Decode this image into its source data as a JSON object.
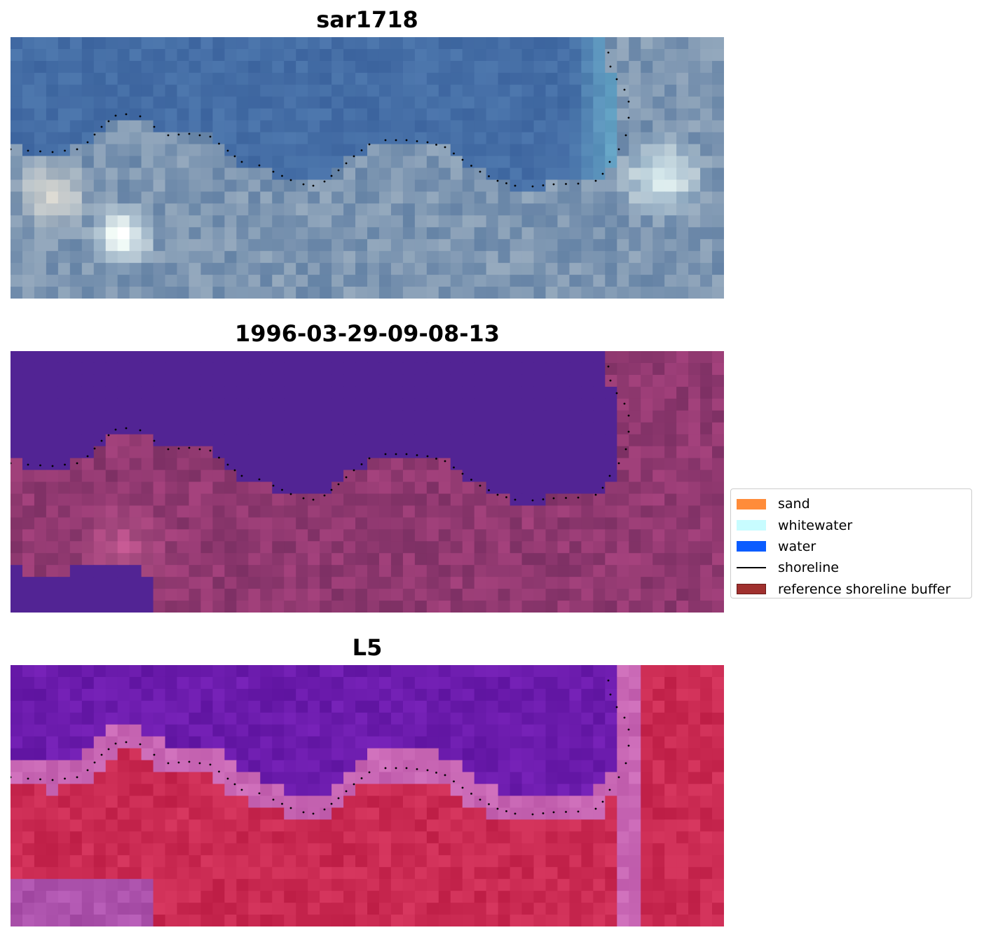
{
  "panels": [
    {
      "title": "sar1718",
      "kind": "rgb"
    },
    {
      "title": "1996-03-29-09-08-13",
      "kind": "classified"
    },
    {
      "title": "L5",
      "kind": "index"
    }
  ],
  "legend": {
    "items": [
      {
        "label": "sand",
        "color": "#ff8c3a",
        "type": "patch"
      },
      {
        "label": "whitewater",
        "color": "#c8fcff",
        "type": "patch"
      },
      {
        "label": "water",
        "color": "#0a5cff",
        "type": "patch"
      },
      {
        "label": "shoreline",
        "color": "#000000",
        "type": "line"
      },
      {
        "label": "reference shoreline buffer",
        "color": "#a0302e",
        "type": "patch"
      }
    ]
  }
}
